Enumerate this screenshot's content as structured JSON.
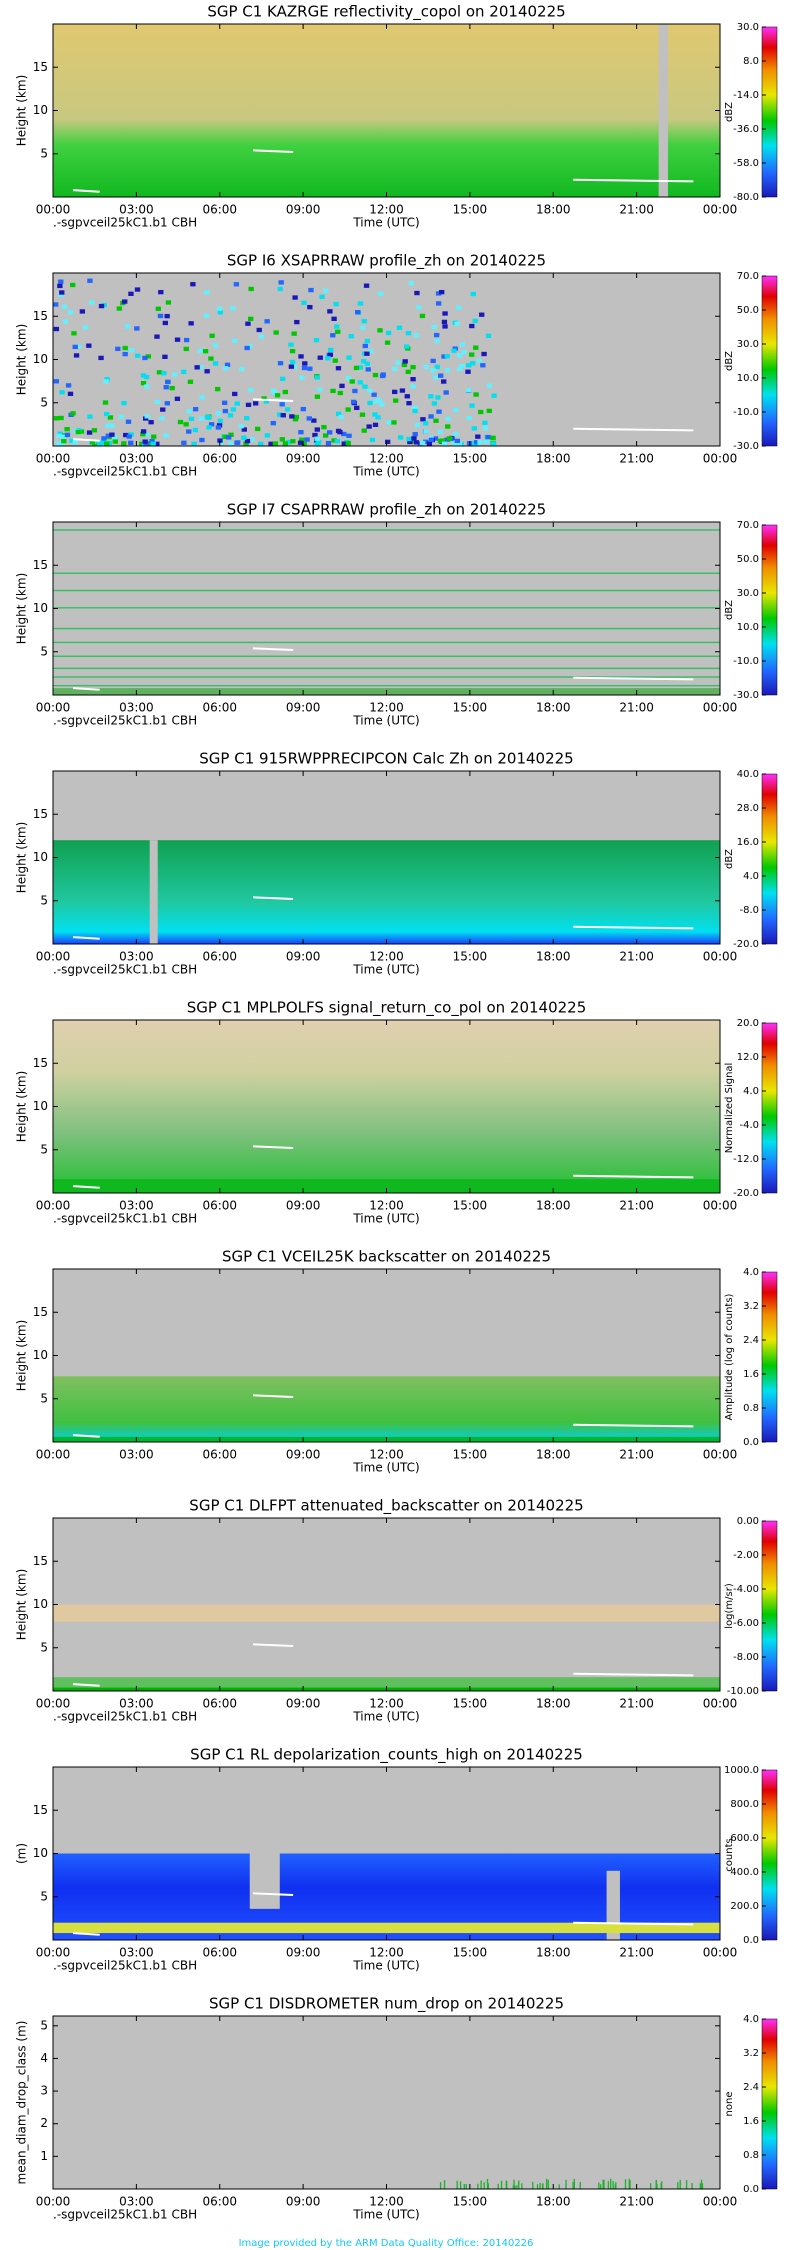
{
  "chart_data": [
    {
      "type": "heatmap",
      "title": "SGP C1 KAZRGE reflectivity_copol on 20140225",
      "xlabel": "Time (UTC)",
      "ylabel": "Height (km)",
      "annotation": ".-sgpvceil25kC1.b1 CBH",
      "xlim": [
        0,
        24
      ],
      "xticks": [
        {
          "value": 0,
          "label": "00:00"
        },
        {
          "value": 3,
          "label": "03:00"
        },
        {
          "value": 6,
          "label": "06:00"
        },
        {
          "value": 9,
          "label": "09:00"
        },
        {
          "value": 12,
          "label": "12:00"
        },
        {
          "value": 15,
          "label": "15:00"
        },
        {
          "value": 18,
          "label": "18:00"
        },
        {
          "value": 21,
          "label": "21:00"
        },
        {
          "value": 24,
          "label": "00:00"
        }
      ],
      "ylim": [
        0,
        20
      ],
      "yticks": [
        5,
        10,
        15
      ],
      "colorbar": {
        "label": "dBZ",
        "lim": [
          -80,
          30
        ],
        "ticks": [
          {
            "value": 30,
            "label": "30.0"
          },
          {
            "value": 8,
            "label": "8.0"
          },
          {
            "value": -14,
            "label": "-14.0"
          },
          {
            "value": -36,
            "label": "-36.0"
          },
          {
            "value": -58,
            "label": "-58.0"
          },
          {
            "value": -80,
            "label": "-80.0"
          }
        ]
      }
    },
    {
      "type": "heatmap",
      "title": "SGP I6 XSAPRRAW profile_zh on 20140225",
      "xlabel": "Time (UTC)",
      "ylabel": "Height (km)",
      "annotation": ".-sgpvceil25kC1.b1 CBH",
      "xlim": [
        0,
        24
      ],
      "xticks": [
        {
          "value": 0,
          "label": "00:00"
        },
        {
          "value": 3,
          "label": "03:00"
        },
        {
          "value": 6,
          "label": "06:00"
        },
        {
          "value": 9,
          "label": "09:00"
        },
        {
          "value": 12,
          "label": "12:00"
        },
        {
          "value": 15,
          "label": "15:00"
        },
        {
          "value": 18,
          "label": "18:00"
        },
        {
          "value": 21,
          "label": "21:00"
        },
        {
          "value": 24,
          "label": "00:00"
        }
      ],
      "ylim": [
        0,
        20
      ],
      "yticks": [
        5,
        10,
        15
      ],
      "colorbar": {
        "label": "dBZ",
        "lim": [
          -30,
          70
        ],
        "ticks": [
          {
            "value": 70,
            "label": "70.0"
          },
          {
            "value": 50,
            "label": "50.0"
          },
          {
            "value": 30,
            "label": "30.0"
          },
          {
            "value": 10,
            "label": "10.0"
          },
          {
            "value": -10,
            "label": "-10.0"
          },
          {
            "value": -30,
            "label": "-30.0"
          }
        ]
      }
    },
    {
      "type": "heatmap",
      "title": "SGP I7 CSAPRRAW profile_zh on 20140225",
      "xlabel": "Time (UTC)",
      "ylabel": "Height (km)",
      "annotation": ".-sgpvceil25kC1.b1 CBH",
      "xlim": [
        0,
        24
      ],
      "xticks": [
        {
          "value": 0,
          "label": "00:00"
        },
        {
          "value": 3,
          "label": "03:00"
        },
        {
          "value": 6,
          "label": "06:00"
        },
        {
          "value": 9,
          "label": "09:00"
        },
        {
          "value": 12,
          "label": "12:00"
        },
        {
          "value": 15,
          "label": "15:00"
        },
        {
          "value": 18,
          "label": "18:00"
        },
        {
          "value": 21,
          "label": "21:00"
        },
        {
          "value": 24,
          "label": "00:00"
        }
      ],
      "ylim": [
        0,
        20
      ],
      "yticks": [
        5,
        10,
        15
      ],
      "colorbar": {
        "label": "dBZ",
        "lim": [
          -30,
          70
        ],
        "ticks": [
          {
            "value": 70,
            "label": "70.0"
          },
          {
            "value": 50,
            "label": "50.0"
          },
          {
            "value": 30,
            "label": "30.0"
          },
          {
            "value": 10,
            "label": "10.0"
          },
          {
            "value": -10,
            "label": "-10.0"
          },
          {
            "value": -30,
            "label": "-30.0"
          }
        ]
      }
    },
    {
      "type": "heatmap",
      "title": "SGP C1 915RWPPRECIPCON Calc Zh on 20140225",
      "xlabel": "Time (UTC)",
      "ylabel": "Height (km)",
      "annotation": ".-sgpvceil25kC1.b1 CBH",
      "xlim": [
        0,
        24
      ],
      "xticks": [
        {
          "value": 0,
          "label": "00:00"
        },
        {
          "value": 3,
          "label": "03:00"
        },
        {
          "value": 6,
          "label": "06:00"
        },
        {
          "value": 9,
          "label": "09:00"
        },
        {
          "value": 12,
          "label": "12:00"
        },
        {
          "value": 15,
          "label": "15:00"
        },
        {
          "value": 18,
          "label": "18:00"
        },
        {
          "value": 21,
          "label": "21:00"
        },
        {
          "value": 24,
          "label": "00:00"
        }
      ],
      "ylim": [
        0,
        20
      ],
      "yticks": [
        5,
        10,
        15
      ],
      "colorbar": {
        "label": "dBZ",
        "lim": [
          -20,
          40
        ],
        "ticks": [
          {
            "value": 40,
            "label": "40.0"
          },
          {
            "value": 28,
            "label": "28.0"
          },
          {
            "value": 16,
            "label": "16.0"
          },
          {
            "value": 4,
            "label": "4.0"
          },
          {
            "value": -8,
            "label": "-8.0"
          },
          {
            "value": -20,
            "label": "-20.0"
          }
        ]
      }
    },
    {
      "type": "heatmap",
      "title": "SGP C1 MPLPOLFS signal_return_co_pol on 20140225",
      "xlabel": "Time (UTC)",
      "ylabel": "Height (km)",
      "annotation": ".-sgpvceil25kC1.b1 CBH",
      "xlim": [
        0,
        24
      ],
      "xticks": [
        {
          "value": 0,
          "label": "00:00"
        },
        {
          "value": 3,
          "label": "03:00"
        },
        {
          "value": 6,
          "label": "06:00"
        },
        {
          "value": 9,
          "label": "09:00"
        },
        {
          "value": 12,
          "label": "12:00"
        },
        {
          "value": 15,
          "label": "15:00"
        },
        {
          "value": 18,
          "label": "18:00"
        },
        {
          "value": 21,
          "label": "21:00"
        },
        {
          "value": 24,
          "label": "00:00"
        }
      ],
      "ylim": [
        0,
        20
      ],
      "yticks": [
        5,
        10,
        15
      ],
      "colorbar": {
        "label": "Normalized Signal",
        "lim": [
          -20,
          20
        ],
        "ticks": [
          {
            "value": 20,
            "label": "20.0"
          },
          {
            "value": 12,
            "label": "12.0"
          },
          {
            "value": 4,
            "label": "4.0"
          },
          {
            "value": -4,
            "label": "-4.0"
          },
          {
            "value": -12,
            "label": "-12.0"
          },
          {
            "value": -20,
            "label": "-20.0"
          }
        ]
      }
    },
    {
      "type": "heatmap",
      "title": "SGP C1 VCEIL25K backscatter on 20140225",
      "xlabel": "Time (UTC)",
      "ylabel": "Height (km)",
      "xlim": [
        0,
        24
      ],
      "xticks": [
        {
          "value": 0,
          "label": "00:00"
        },
        {
          "value": 3,
          "label": "03:00"
        },
        {
          "value": 6,
          "label": "06:00"
        },
        {
          "value": 9,
          "label": "09:00"
        },
        {
          "value": 12,
          "label": "12:00"
        },
        {
          "value": 15,
          "label": "15:00"
        },
        {
          "value": 18,
          "label": "18:00"
        },
        {
          "value": 21,
          "label": "21:00"
        },
        {
          "value": 24,
          "label": "00:00"
        }
      ],
      "ylim": [
        0,
        20
      ],
      "yticks": [
        5,
        10,
        15
      ],
      "colorbar": {
        "label": "Amplitude (log of counts)",
        "lim": [
          0,
          4
        ],
        "ticks": [
          {
            "value": 4,
            "label": "4.0"
          },
          {
            "value": 3.2,
            "label": "3.2"
          },
          {
            "value": 2.4,
            "label": "2.4"
          },
          {
            "value": 1.6,
            "label": "1.6"
          },
          {
            "value": 0.8,
            "label": "0.8"
          },
          {
            "value": 0,
            "label": "0.0"
          }
        ]
      }
    },
    {
      "type": "heatmap",
      "title": "SGP C1 DLFPT attenuated_backscatter on 20140225",
      "xlabel": "Time (UTC)",
      "ylabel": "Height (km)",
      "annotation": ".-sgpvceil25kC1.b1 CBH",
      "xlim": [
        0,
        24
      ],
      "xticks": [
        {
          "value": 0,
          "label": "00:00"
        },
        {
          "value": 3,
          "label": "03:00"
        },
        {
          "value": 6,
          "label": "06:00"
        },
        {
          "value": 9,
          "label": "09:00"
        },
        {
          "value": 12,
          "label": "12:00"
        },
        {
          "value": 15,
          "label": "15:00"
        },
        {
          "value": 18,
          "label": "18:00"
        },
        {
          "value": 21,
          "label": "21:00"
        },
        {
          "value": 24,
          "label": "00:00"
        }
      ],
      "ylim": [
        0,
        20
      ],
      "yticks": [
        5,
        10,
        15
      ],
      "colorbar": {
        "label": "log(m/sr)",
        "lim": [
          -10,
          0
        ],
        "ticks": [
          {
            "value": 0,
            "label": "0.00"
          },
          {
            "value": -2,
            "label": "-2.00"
          },
          {
            "value": -4,
            "label": "-4.00"
          },
          {
            "value": -6,
            "label": "-6.00"
          },
          {
            "value": -8,
            "label": "-8.00"
          },
          {
            "value": -10,
            "label": "-10.00"
          }
        ]
      }
    },
    {
      "type": "heatmap",
      "title": "SGP C1 RL depolarization_counts_high on 20140225",
      "xlabel": "Time (UTC)",
      "ylabel": "(m)",
      "annotation": ".-sgpvceil25kC1.b1 CBH",
      "xlim": [
        0,
        24
      ],
      "xticks": [
        {
          "value": 0,
          "label": "00:00"
        },
        {
          "value": 3,
          "label": "03:00"
        },
        {
          "value": 6,
          "label": "06:00"
        },
        {
          "value": 9,
          "label": "09:00"
        },
        {
          "value": 12,
          "label": "12:00"
        },
        {
          "value": 15,
          "label": "15:00"
        },
        {
          "value": 18,
          "label": "18:00"
        },
        {
          "value": 21,
          "label": "21:00"
        },
        {
          "value": 24,
          "label": "00:00"
        }
      ],
      "ylim": [
        0,
        20
      ],
      "yticks": [
        5,
        10,
        15
      ],
      "colorbar": {
        "label": "counts",
        "lim": [
          0,
          1000
        ],
        "ticks": [
          {
            "value": 1000,
            "label": "1000.0"
          },
          {
            "value": 800,
            "label": "800.0"
          },
          {
            "value": 600,
            "label": "600.0"
          },
          {
            "value": 400,
            "label": "400.0"
          },
          {
            "value": 200,
            "label": "200.0"
          },
          {
            "value": 0,
            "label": "0.0"
          }
        ]
      }
    },
    {
      "type": "heatmap",
      "title": "SGP C1 DISDROMETER num_drop on 20140225",
      "xlabel": "Time (UTC)",
      "ylabel": "mean_diam_drop_class (m)",
      "annotation": ".-sgpvceil25kC1.b1 CBH",
      "xlim": [
        0,
        24
      ],
      "xticks": [
        {
          "value": 0,
          "label": "00:00"
        },
        {
          "value": 3,
          "label": "03:00"
        },
        {
          "value": 6,
          "label": "06:00"
        },
        {
          "value": 9,
          "label": "09:00"
        },
        {
          "value": 12,
          "label": "12:00"
        },
        {
          "value": 15,
          "label": "15:00"
        },
        {
          "value": 18,
          "label": "18:00"
        },
        {
          "value": 21,
          "label": "21:00"
        },
        {
          "value": 24,
          "label": "00:00"
        }
      ],
      "ylim": [
        0,
        5.3
      ],
      "yticks": [
        1,
        2,
        3,
        4,
        5
      ],
      "colorbar": {
        "label": "none",
        "lim": [
          0,
          4
        ],
        "ticks": [
          {
            "value": 4,
            "label": "4.0"
          },
          {
            "value": 3.2,
            "label": "3.2"
          },
          {
            "value": 2.4,
            "label": "2.4"
          },
          {
            "value": 1.6,
            "label": "1.6"
          },
          {
            "value": 0.8,
            "label": "0.8"
          },
          {
            "value": 0,
            "label": "0.0"
          }
        ]
      }
    }
  ],
  "credit": "Image provided by the ARM Data Quality Office: 20140226"
}
